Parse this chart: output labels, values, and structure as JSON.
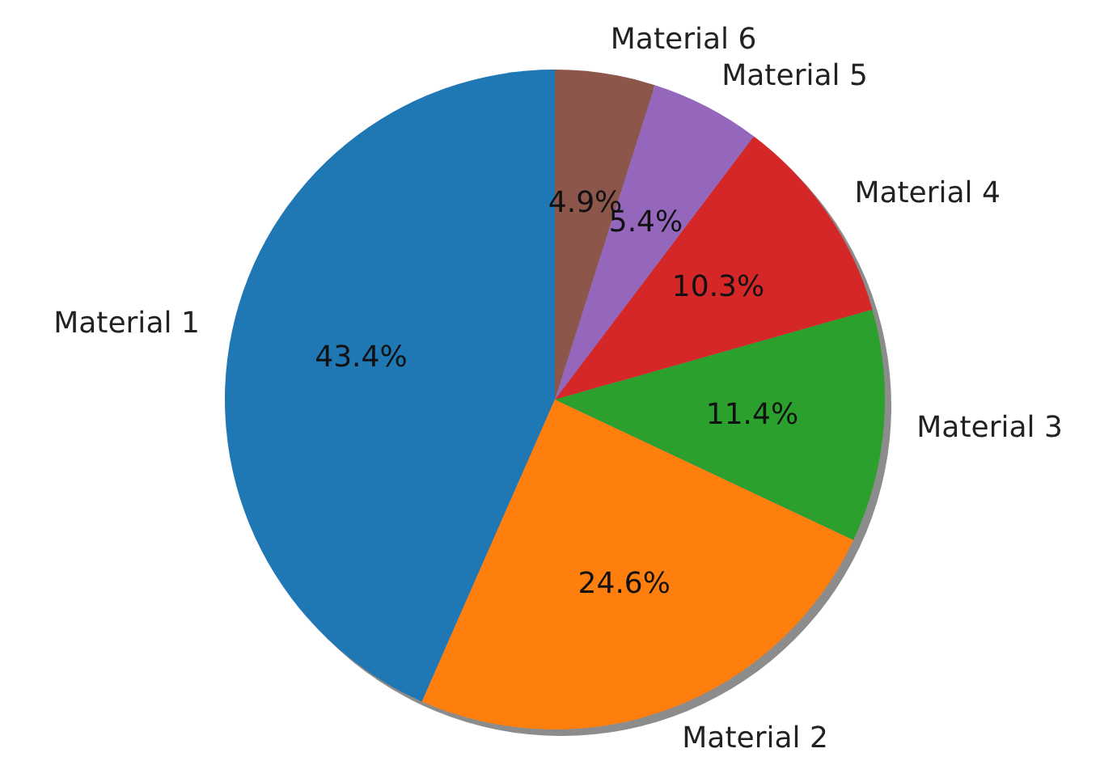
{
  "chart_data": {
    "type": "pie",
    "categories": [
      "Material 1",
      "Material 2",
      "Material 3",
      "Material 4",
      "Material 5",
      "Material 6"
    ],
    "values": [
      43.4,
      24.6,
      11.4,
      10.3,
      5.4,
      4.9
    ],
    "colors": [
      "#1f77b4",
      "#ff7f0e",
      "#2ca02c",
      "#d62728",
      "#9467bd",
      "#8c564b"
    ],
    "value_labels": [
      "43.4%",
      "24.6%",
      "11.4%",
      "10.3%",
      "5.4%",
      "4.9%"
    ],
    "legend": false
  }
}
